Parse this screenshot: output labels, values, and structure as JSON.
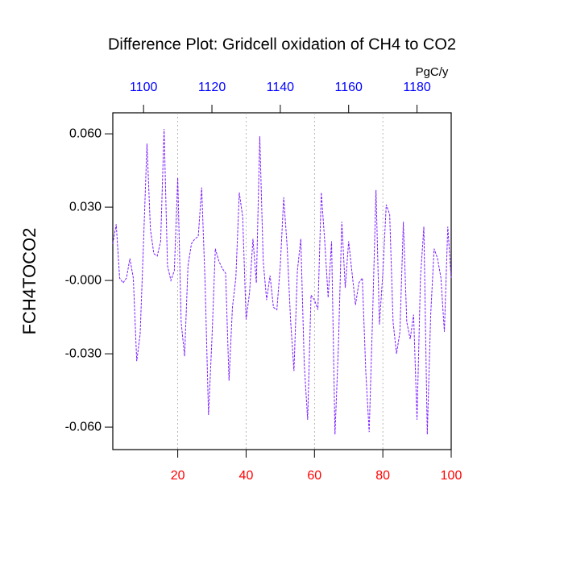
{
  "chart_data": {
    "type": "line",
    "title": "Difference Plot: Gridcell oxidation of CH4 to CO2",
    "y_label": "FCH4TOCO2",
    "x2_label": "PgC/y",
    "x": [
      1,
      2,
      3,
      4,
      5,
      6,
      7,
      8,
      9,
      10,
      11,
      12,
      13,
      14,
      15,
      16,
      17,
      18,
      19,
      20,
      21,
      22,
      23,
      24,
      25,
      26,
      27,
      28,
      29,
      30,
      31,
      32,
      33,
      34,
      35,
      36,
      37,
      38,
      39,
      40,
      41,
      42,
      43,
      44,
      45,
      46,
      47,
      48,
      49,
      50,
      51,
      52,
      53,
      54,
      55,
      56,
      57,
      58,
      59,
      60,
      61,
      62,
      63,
      64,
      65,
      66,
      67,
      68,
      69,
      70,
      71,
      72,
      73,
      74,
      75,
      76,
      77,
      78,
      79,
      80,
      81,
      82,
      83,
      84,
      85,
      86,
      87,
      88,
      89,
      90,
      91,
      92,
      93,
      94,
      95,
      96,
      97,
      98,
      99,
      100
    ],
    "series": [
      {
        "color": "#7a1cff",
        "values": [
          0.015,
          0.023,
          0.001,
          -0.001,
          0.001,
          0.009,
          0.001,
          -0.033,
          -0.022,
          0.016,
          0.056,
          0.021,
          0.011,
          0.01,
          0.016,
          0.062,
          0.006,
          0.0,
          0.004,
          0.042,
          -0.017,
          -0.031,
          0.006,
          0.015,
          0.017,
          0.018,
          0.038,
          -0.001,
          -0.055,
          -0.024,
          0.013,
          0.008,
          0.005,
          0.003,
          -0.041,
          -0.011,
          0.001,
          0.036,
          0.026,
          -0.016,
          -0.005,
          0.017,
          -0.001,
          0.059,
          0.008,
          -0.008,
          0.002,
          -0.011,
          -0.012,
          0.006,
          0.034,
          0.014,
          -0.016,
          -0.037,
          0.004,
          0.017,
          -0.034,
          -0.057,
          -0.006,
          -0.008,
          -0.012,
          0.036,
          0.016,
          -0.007,
          0.016,
          -0.063,
          -0.027,
          0.024,
          -0.003,
          0.016,
          0.003,
          -0.01,
          -0.001,
          0.001,
          -0.037,
          -0.062,
          -0.015,
          0.037,
          -0.018,
          0.003,
          0.031,
          0.027,
          -0.017,
          -0.03,
          -0.021,
          0.024,
          -0.017,
          -0.024,
          -0.014,
          -0.057,
          0.001,
          0.022,
          -0.063,
          -0.014,
          0.013,
          0.009,
          0.001,
          -0.021,
          0.022,
          0.001
        ]
      }
    ],
    "xlim": [
      1,
      100
    ],
    "xticks": [
      20,
      40,
      60,
      80,
      100
    ],
    "xtick_color": "#ff0000",
    "x2lim": [
      1091,
      1190
    ],
    "x2ticks": [
      1100,
      1120,
      1140,
      1160,
      1180
    ],
    "x2tick_color": "#0000ff",
    "ylim": [
      -0.0692,
      0.0686
    ],
    "yticks": [
      {
        "value": 0.06,
        "label": "0.060"
      },
      {
        "value": 0.03,
        "label": "0.030"
      },
      {
        "value": 0,
        "label": "-0.000"
      },
      {
        "value": -0.03,
        "label": "-0.030"
      },
      {
        "value": -0.06,
        "label": "-0.060"
      }
    ],
    "grid": true
  }
}
